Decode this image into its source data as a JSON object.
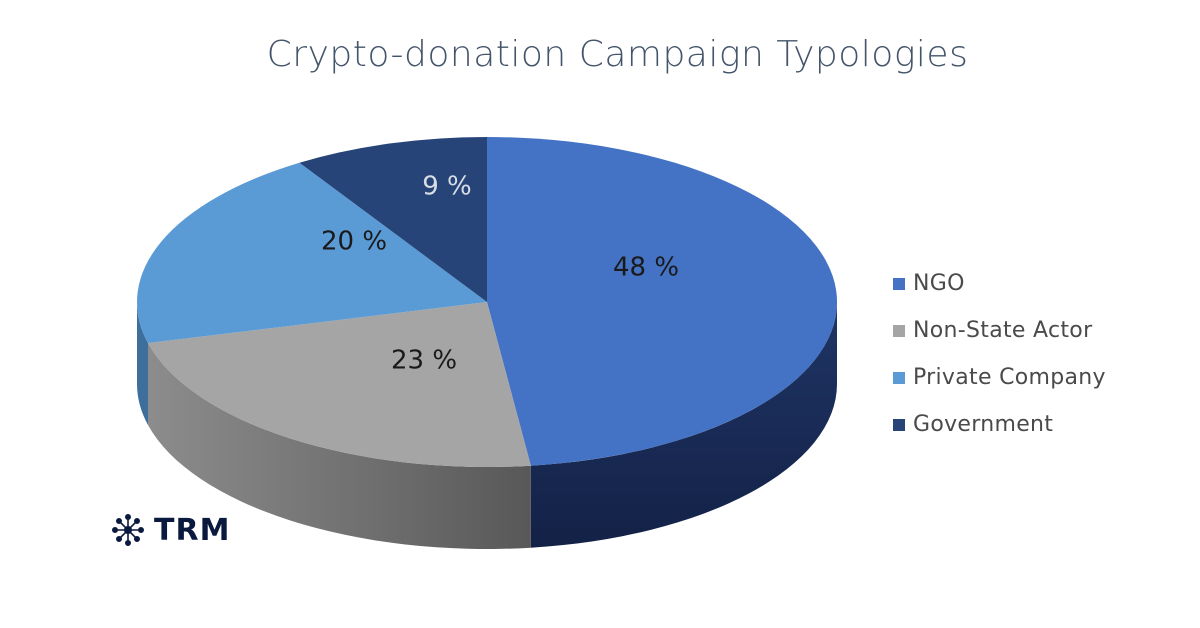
{
  "chart_data": {
    "type": "pie",
    "title": "Crypto-donation Campaign Typologies",
    "slices": [
      {
        "name": "NGO",
        "value": 48,
        "label": "48 %",
        "color": "#4472c4"
      },
      {
        "name": "Non-State Actor",
        "value": 23,
        "label": "23 %",
        "color": "#a5a5a5"
      },
      {
        "name": "Private Company",
        "value": 20,
        "label": "20 %",
        "color": "#5b9bd5"
      },
      {
        "name": "Government",
        "value": 9,
        "label": "9 %",
        "color": "#264478"
      }
    ],
    "legend_position": "right",
    "style": "3d"
  },
  "logo": {
    "text": "TRM",
    "icon": "network-star-icon"
  }
}
